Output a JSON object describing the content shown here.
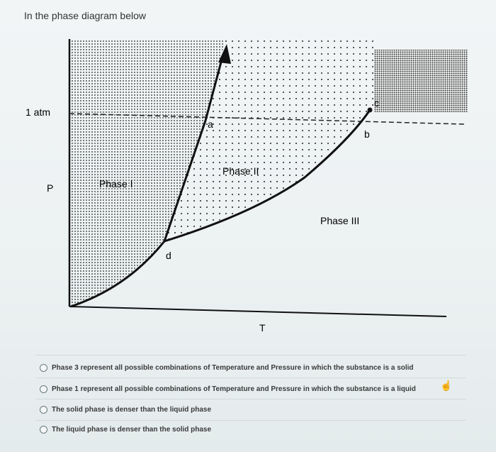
{
  "question": {
    "prompt": "In the phase diagram below"
  },
  "diagram": {
    "y_axis_label": "P",
    "x_axis_label": "T",
    "pressure_reference_label": "1 atm",
    "region_labels": [
      "Phase I",
      "Phase II",
      "Phase III"
    ],
    "point_labels": {
      "a": "a",
      "b": "b",
      "c": "c",
      "d": "d"
    }
  },
  "options": [
    {
      "label": "Phase 3 represent all possible combinations of Temperature and Pressure in which the substance is a solid",
      "selected": false
    },
    {
      "label": "Phase 1 represent all possible combinations of Temperature and Pressure in which the substance is a liquid",
      "selected": false
    },
    {
      "label": "The solid phase is denser than the liquid phase",
      "selected": false
    },
    {
      "label": "The liquid phase is denser than the solid phase",
      "selected": false
    }
  ],
  "icons": {
    "cursor": "hand-pointer-icon",
    "radio": "radio-button-icon"
  }
}
